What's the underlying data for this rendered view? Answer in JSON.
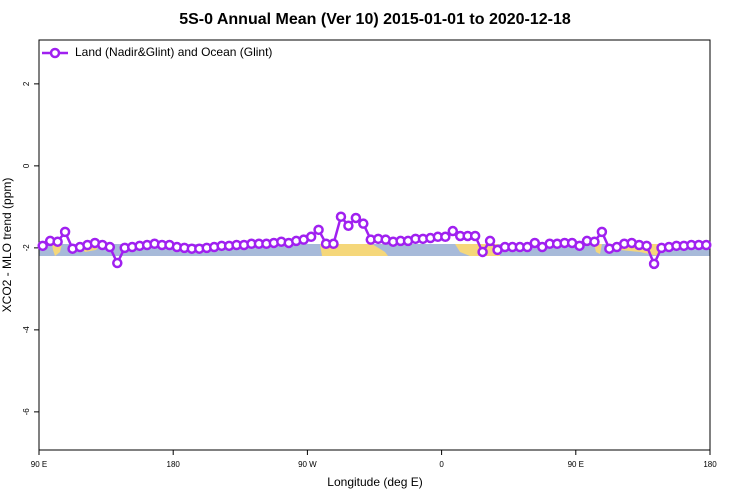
{
  "chart_data": {
    "type": "line",
    "title": "5S-0 Annual Mean (Ver 10)   2015-01-01 to 2020-12-18",
    "x_label": "Longitude (deg E)",
    "y_label": "XCO2 - MLO trend (ppm)",
    "xlim": [
      90,
      540
    ],
    "xticks": [
      {
        "value": 90,
        "label": "90 E"
      },
      180,
      {
        "value": 270,
        "label": "90 W"
      },
      {
        "value": 360,
        "label": "0"
      },
      {
        "value": 450,
        "label": "90 E"
      },
      {
        "value": 540,
        "label": "180"
      }
    ],
    "ylim": [
      -6.93,
      3.07
    ],
    "yticks": [
      -6,
      -4,
      -2,
      0,
      2
    ],
    "legend": "top-left",
    "x": [
      92.5,
      97.5,
      102.5,
      107.5,
      112.5,
      117.5,
      122.5,
      127.5,
      132.5,
      137.5,
      142.5,
      147.5,
      152.5,
      157.5,
      162.5,
      167.5,
      172.5,
      177.5,
      182.5,
      187.5,
      192.5,
      197.5,
      202.5,
      207.5,
      212.5,
      217.5,
      222.5,
      227.5,
      232.5,
      237.5,
      242.5,
      247.5,
      252.5,
      257.5,
      262.5,
      267.5,
      272.5,
      277.5,
      282.5,
      287.5,
      292.5,
      297.5,
      302.5,
      307.5,
      312.5,
      317.5,
      322.5,
      327.5,
      332.5,
      337.5,
      342.5,
      347.5,
      352.5,
      357.5,
      362.5,
      367.5,
      372.5,
      377.5,
      382.5,
      387.5,
      392.5,
      397.5,
      402.5,
      407.5,
      412.5,
      417.5,
      422.5,
      427.5,
      432.5,
      437.5,
      442.5,
      447.5,
      452.5,
      457.5,
      462.5,
      467.5,
      472.5,
      477.5,
      482.5,
      487.5,
      492.5,
      497.5,
      502.5,
      507.5,
      512.5,
      517.5,
      522.5,
      527.5,
      532.5,
      537.5
    ],
    "series": [
      {
        "name": "Land (Nadir&Glint) and Ocean (Glint)",
        "color": "#a020f0",
        "values": [
          -1.95,
          -1.83,
          -1.85,
          -1.61,
          -2.02,
          -1.98,
          -1.93,
          -1.88,
          -1.93,
          -1.98,
          -2.37,
          -2.0,
          -1.98,
          -1.95,
          -1.93,
          -1.9,
          -1.93,
          -1.93,
          -1.98,
          -2.0,
          -2.02,
          -2.02,
          -2.0,
          -1.98,
          -1.95,
          -1.95,
          -1.93,
          -1.93,
          -1.9,
          -1.9,
          -1.9,
          -1.88,
          -1.85,
          -1.88,
          -1.83,
          -1.8,
          -1.73,
          -1.56,
          -1.9,
          -1.9,
          -1.24,
          -1.46,
          -1.27,
          -1.41,
          -1.8,
          -1.78,
          -1.8,
          -1.85,
          -1.83,
          -1.83,
          -1.78,
          -1.78,
          -1.76,
          -1.73,
          -1.73,
          -1.59,
          -1.71,
          -1.71,
          -1.71,
          -2.1,
          -1.83,
          -2.05,
          -1.98,
          -1.98,
          -1.98,
          -1.98,
          -1.88,
          -1.98,
          -1.9,
          -1.9,
          -1.88,
          -1.88,
          -1.95,
          -1.83,
          -1.85,
          -1.61,
          -2.02,
          -1.98,
          -1.9,
          -1.88,
          -1.93,
          -1.95,
          -2.39,
          -2.0,
          -1.98,
          -1.95,
          -1.95,
          -1.93,
          -1.93,
          -1.93
        ]
      }
    ]
  }
}
